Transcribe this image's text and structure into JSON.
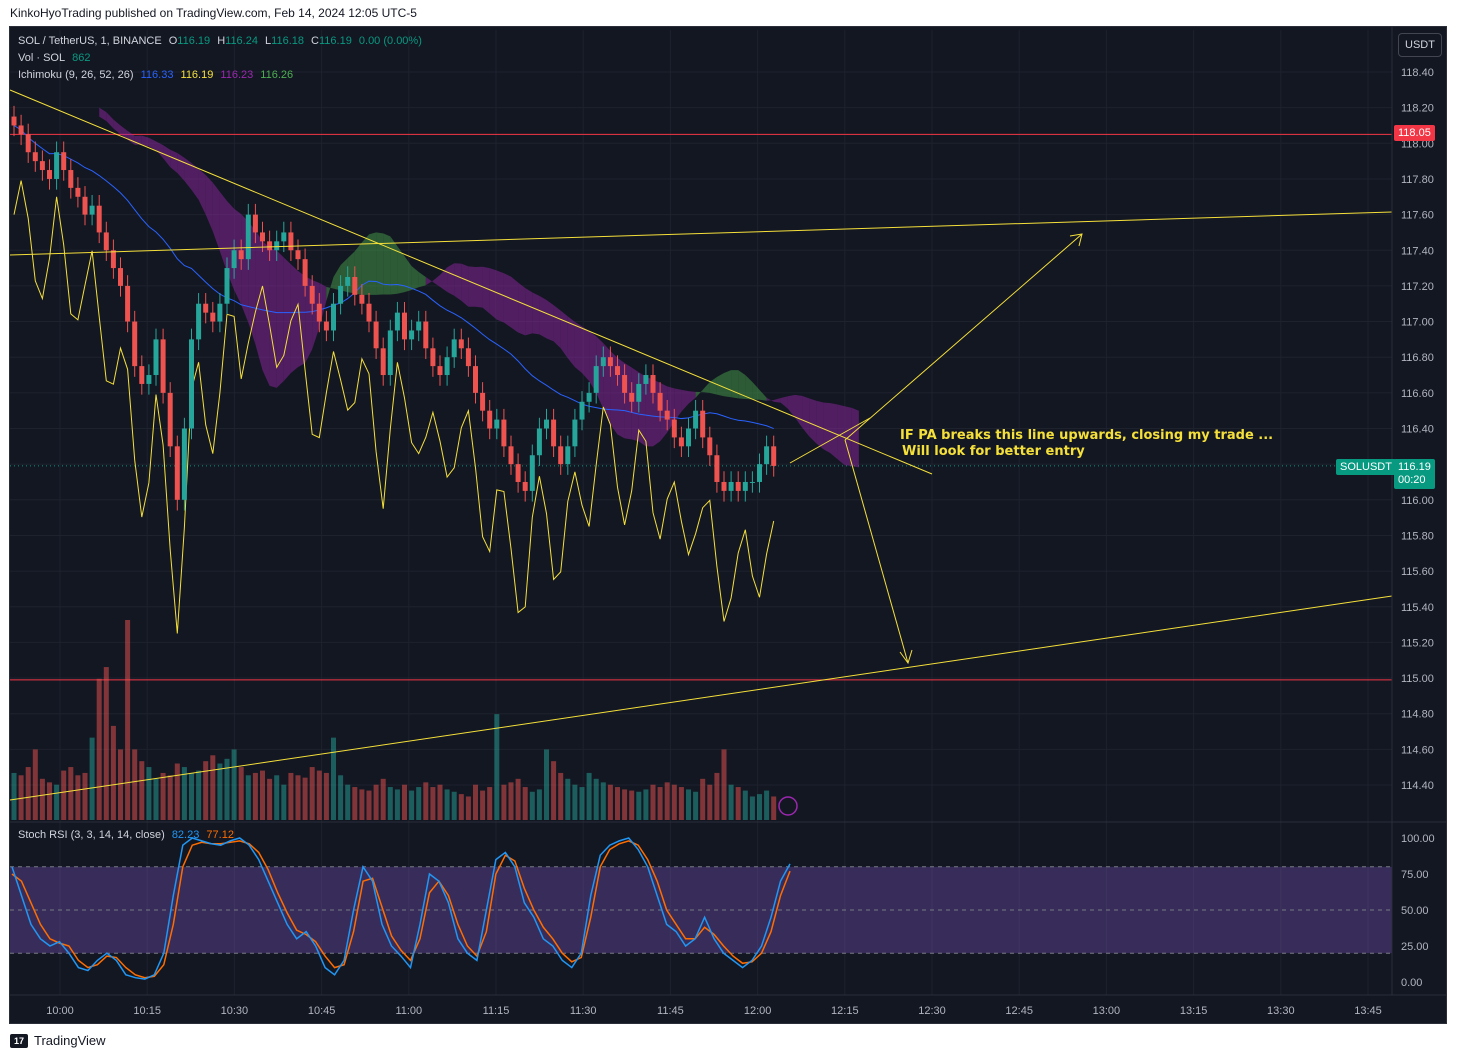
{
  "header": {
    "publisher": "KinkoHyoTrading published on TradingView.com, Feb 14, 2024 12:05 UTC-5"
  },
  "legend": {
    "symbol": "SOL / TetherUS, 1, BINANCE",
    "o_label": "O",
    "o": "116.19",
    "h_label": "H",
    "h": "116.24",
    "l_label": "L",
    "l": "116.18",
    "c_label": "C",
    "c": "116.19",
    "change": "0.00 (0.00%)",
    "vol_label": "Vol · SOL",
    "vol": "862",
    "ichimoku_label": "Ichimoku (9, 26, 52, 26)",
    "ichi_values": [
      "116.33",
      "116.19",
      "116.23",
      "116.26"
    ],
    "stoch_label": "Stoch RSI (3, 3, 14, 14, close)",
    "stoch_k": "82.23",
    "stoch_d": "77.12"
  },
  "currency_button": "USDT",
  "price_badge": {
    "label": "SOLUSDT",
    "price": "116.19",
    "countdown": "00:20"
  },
  "line_badge": "118.05",
  "annotation": {
    "line1": "IF PA breaks this line upwards, closing my trade ...",
    "line2": "Will look for better entry"
  },
  "footer": {
    "brand": "TradingView",
    "logo_text": "17"
  },
  "colors": {
    "up": "#26a69a",
    "down": "#ef5350",
    "drawing": "#f5e03a",
    "hline": "#f23645",
    "kijun": "#2962ff",
    "chikou": "#f5e03a",
    "stoch_k": "#2196f3",
    "stoch_d": "#ff6d00",
    "band": "#7e57c2"
  },
  "chart_data": {
    "type": "candlestick",
    "price_axis": {
      "min": 114.3,
      "max": 118.5,
      "ticks": [
        "118.40",
        "118.20",
        "118.00",
        "117.80",
        "117.60",
        "117.40",
        "117.20",
        "117.00",
        "116.80",
        "116.60",
        "116.40",
        "116.20",
        "116.00",
        "115.80",
        "115.60",
        "115.40",
        "115.20",
        "115.00",
        "114.80",
        "114.60",
        "114.40"
      ]
    },
    "time_axis": {
      "ticks": [
        "10:00",
        "10:15",
        "10:30",
        "10:45",
        "11:00",
        "11:15",
        "11:30",
        "11:45",
        "12:00",
        "12:15",
        "12:30",
        "12:45",
        "13:00",
        "13:15",
        "13:30",
        "13:45"
      ]
    },
    "stoch_axis": {
      "ticks": [
        "100.00",
        "75.00",
        "50.00",
        "25.00",
        "0.00"
      ],
      "bands": [
        20,
        80
      ]
    },
    "horizontal_lines": [
      118.05,
      114.99
    ],
    "close_series": [
      118.1,
      118.05,
      117.95,
      117.9,
      117.85,
      117.8,
      117.95,
      117.85,
      117.75,
      117.7,
      117.6,
      117.65,
      117.5,
      117.4,
      117.3,
      117.2,
      117.0,
      116.75,
      116.65,
      116.7,
      116.9,
      116.6,
      116.3,
      116.0,
      116.4,
      116.9,
      117.1,
      117.05,
      117.0,
      117.1,
      117.3,
      117.4,
      117.35,
      117.6,
      117.5,
      117.45,
      117.4,
      117.45,
      117.5,
      117.4,
      117.35,
      117.2,
      117.1,
      117.0,
      116.95,
      117.1,
      117.2,
      117.25,
      117.15,
      117.1,
      117.0,
      116.85,
      116.7,
      116.95,
      117.05,
      116.9,
      116.95,
      117.0,
      116.85,
      116.75,
      116.7,
      116.8,
      116.9,
      116.85,
      116.75,
      116.6,
      116.5,
      116.4,
      116.45,
      116.3,
      116.2,
      116.1,
      116.05,
      116.25,
      116.4,
      116.45,
      116.3,
      116.2,
      116.3,
      116.45,
      116.55,
      116.6,
      116.75,
      116.8,
      116.75,
      116.7,
      116.6,
      116.55,
      116.65,
      116.7,
      116.6,
      116.5,
      116.45,
      116.35,
      116.3,
      116.4,
      116.5,
      116.35,
      116.25,
      116.1,
      116.05,
      116.1,
      116.05,
      116.1,
      116.1,
      116.2,
      116.3,
      116.19
    ],
    "volume_series": [
      40,
      38,
      45,
      60,
      35,
      32,
      30,
      42,
      45,
      38,
      40,
      70,
      120,
      130,
      80,
      60,
      170,
      60,
      50,
      45,
      35,
      40,
      38,
      48,
      45,
      40,
      42,
      50,
      55,
      48,
      52,
      60,
      45,
      38,
      40,
      42,
      35,
      38,
      30,
      40,
      38,
      36,
      45,
      42,
      40,
      70,
      38,
      30,
      28,
      26,
      25,
      30,
      35,
      28,
      26,
      30,
      25,
      28,
      32,
      28,
      30,
      26,
      24,
      22,
      20,
      30,
      25,
      28,
      90,
      30,
      32,
      35,
      28,
      24,
      26,
      60,
      50,
      40,
      35,
      30,
      28,
      40,
      35,
      32,
      30,
      28,
      26,
      25,
      24,
      26,
      30,
      28,
      32,
      30,
      28,
      26,
      24,
      35,
      30,
      40,
      60,
      30,
      28,
      25,
      20,
      22,
      25,
      20
    ],
    "stoch_k_series": [
      80,
      60,
      40,
      30,
      25,
      28,
      20,
      10,
      8,
      15,
      20,
      15,
      5,
      3,
      2,
      5,
      20,
      60,
      95,
      100,
      98,
      96,
      95,
      98,
      100,
      95,
      85,
      70,
      55,
      40,
      30,
      35,
      25,
      10,
      5,
      15,
      50,
      80,
      70,
      40,
      25,
      18,
      10,
      40,
      75,
      70,
      55,
      30,
      20,
      15,
      50,
      85,
      90,
      80,
      55,
      45,
      30,
      25,
      15,
      10,
      20,
      60,
      88,
      95,
      98,
      100,
      92,
      80,
      60,
      40,
      35,
      25,
      30,
      45,
      30,
      20,
      15,
      10,
      15,
      25,
      45,
      70,
      82
    ],
    "stoch_d_series": [
      75,
      70,
      55,
      40,
      30,
      27,
      25,
      15,
      10,
      12,
      18,
      17,
      10,
      5,
      3,
      4,
      12,
      40,
      80,
      95,
      97,
      96,
      96,
      97,
      98,
      96,
      90,
      78,
      62,
      48,
      36,
      33,
      28,
      18,
      10,
      12,
      35,
      70,
      72,
      52,
      32,
      22,
      15,
      30,
      62,
      70,
      60,
      40,
      25,
      18,
      35,
      75,
      88,
      84,
      65,
      50,
      38,
      30,
      20,
      14,
      17,
      45,
      80,
      92,
      96,
      98,
      95,
      85,
      70,
      50,
      40,
      30,
      30,
      38,
      33,
      25,
      18,
      13,
      14,
      20,
      35,
      60,
      77
    ]
  }
}
